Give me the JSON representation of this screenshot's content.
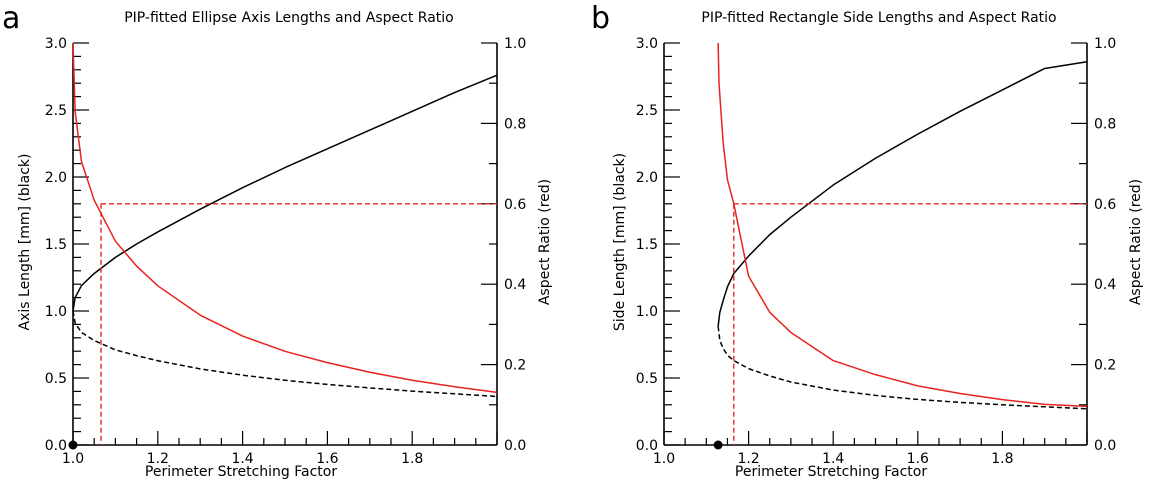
{
  "chart_data": [
    {
      "type": "line",
      "panel_label": "a",
      "title": "PIP-fitted Ellipse Axis Lengths and Aspect Ratio",
      "xlabel": "Perimeter Stretching Factor",
      "ylabel": "Axis Length [mm] (black)",
      "y2label": "Aspect Ratio (red)",
      "xlim": [
        1.0,
        2.0
      ],
      "ylim": [
        0.0,
        3.0
      ],
      "y2lim": [
        0.0,
        1.0
      ],
      "x_ticks": [
        "1.0",
        "1.2",
        "1.4",
        "1.6",
        "1.8"
      ],
      "y_ticks": [
        "0.0",
        "0.5",
        "1.0",
        "1.5",
        "2.0",
        "2.5",
        "3.0"
      ],
      "y2_ticks": [
        "0.0",
        "0.2",
        "0.4",
        "0.6",
        "0.8",
        "1.0"
      ],
      "grid": false,
      "marker": {
        "x": 1.0,
        "y": 0.0
      },
      "reference": {
        "x": 1.066,
        "aspect_ratio": 0.6
      },
      "series": [
        {
          "role": "major_axis",
          "axis": "left",
          "style": "solid",
          "color": "#000000",
          "x": [
            1.0,
            1.005,
            1.02,
            1.05,
            1.1,
            1.15,
            1.2,
            1.3,
            1.4,
            1.5,
            1.6,
            1.7,
            1.8,
            1.9,
            2.0
          ],
          "y": [
            1.0,
            1.1,
            1.19,
            1.28,
            1.4,
            1.5,
            1.59,
            1.76,
            1.92,
            2.07,
            2.21,
            2.35,
            2.49,
            2.63,
            2.76
          ]
        },
        {
          "role": "minor_axis",
          "axis": "left",
          "style": "dashed",
          "color": "#000000",
          "x": [
            1.0,
            1.005,
            1.02,
            1.05,
            1.1,
            1.15,
            1.2,
            1.3,
            1.4,
            1.5,
            1.6,
            1.7,
            1.8,
            1.9,
            2.0
          ],
          "y": [
            1.0,
            0.91,
            0.84,
            0.78,
            0.71,
            0.667,
            0.629,
            0.568,
            0.521,
            0.483,
            0.452,
            0.426,
            0.402,
            0.382,
            0.362
          ]
        },
        {
          "role": "aspect_ratio",
          "axis": "right",
          "style": "solid",
          "color": "#e8231f",
          "x": [
            1.0,
            1.005,
            1.02,
            1.05,
            1.1,
            1.15,
            1.2,
            1.3,
            1.4,
            1.5,
            1.6,
            1.7,
            1.8,
            1.9,
            2.0
          ],
          "y": [
            1.0,
            0.83,
            0.705,
            0.609,
            0.507,
            0.445,
            0.396,
            0.323,
            0.271,
            0.233,
            0.205,
            0.181,
            0.161,
            0.145,
            0.131
          ]
        }
      ]
    },
    {
      "type": "line",
      "panel_label": "b",
      "title": "PIP-fitted Rectangle Side Lengths and Aspect Ratio",
      "xlabel": "Perimeter Stretching Factor",
      "ylabel": "Side Length [mm] (black)",
      "y2label": "Aspect Ratio (red)",
      "xlim": [
        1.0,
        2.0
      ],
      "ylim": [
        0.0,
        3.0
      ],
      "y2lim": [
        0.0,
        1.0
      ],
      "x_ticks": [
        "1.0",
        "1.2",
        "1.4",
        "1.6",
        "1.8"
      ],
      "y_ticks": [
        "0.0",
        "0.5",
        "1.0",
        "1.5",
        "2.0",
        "2.5",
        "3.0"
      ],
      "y2_ticks": [
        "0.0",
        "0.2",
        "0.4",
        "0.6",
        "0.8",
        "1.0"
      ],
      "grid": false,
      "marker": {
        "x": 1.128,
        "y": 0.0
      },
      "reference": {
        "x": 1.165,
        "aspect_ratio": 0.6
      },
      "series": [
        {
          "role": "long_side",
          "axis": "left",
          "style": "solid",
          "color": "#000000",
          "x": [
            1.128,
            1.132,
            1.14,
            1.15,
            1.165,
            1.2,
            1.25,
            1.3,
            1.4,
            1.5,
            1.6,
            1.7,
            1.8,
            1.9,
            2.0
          ],
          "y": [
            0.886,
            0.99,
            1.08,
            1.18,
            1.28,
            1.41,
            1.57,
            1.7,
            1.94,
            2.14,
            2.32,
            2.49,
            2.65,
            2.81,
            2.86
          ]
        },
        {
          "role": "short_side",
          "axis": "left",
          "style": "dashed",
          "color": "#000000",
          "x": [
            1.128,
            1.132,
            1.14,
            1.15,
            1.165,
            1.2,
            1.25,
            1.3,
            1.4,
            1.5,
            1.6,
            1.7,
            1.8,
            1.9,
            2.0
          ],
          "y": [
            0.886,
            0.78,
            0.72,
            0.67,
            0.63,
            0.57,
            0.515,
            0.47,
            0.41,
            0.37,
            0.34,
            0.318,
            0.3,
            0.285,
            0.27
          ]
        },
        {
          "role": "aspect_ratio",
          "axis": "right",
          "style": "solid",
          "color": "#e8231f",
          "x": [
            1.128,
            1.13,
            1.14,
            1.15,
            1.165,
            1.2,
            1.25,
            1.3,
            1.4,
            1.5,
            1.6,
            1.7,
            1.8,
            1.9,
            2.0
          ],
          "y": [
            1.0,
            0.9,
            0.75,
            0.66,
            0.6,
            0.42,
            0.33,
            0.28,
            0.21,
            0.175,
            0.147,
            0.128,
            0.113,
            0.101,
            0.096
          ]
        }
      ]
    }
  ]
}
